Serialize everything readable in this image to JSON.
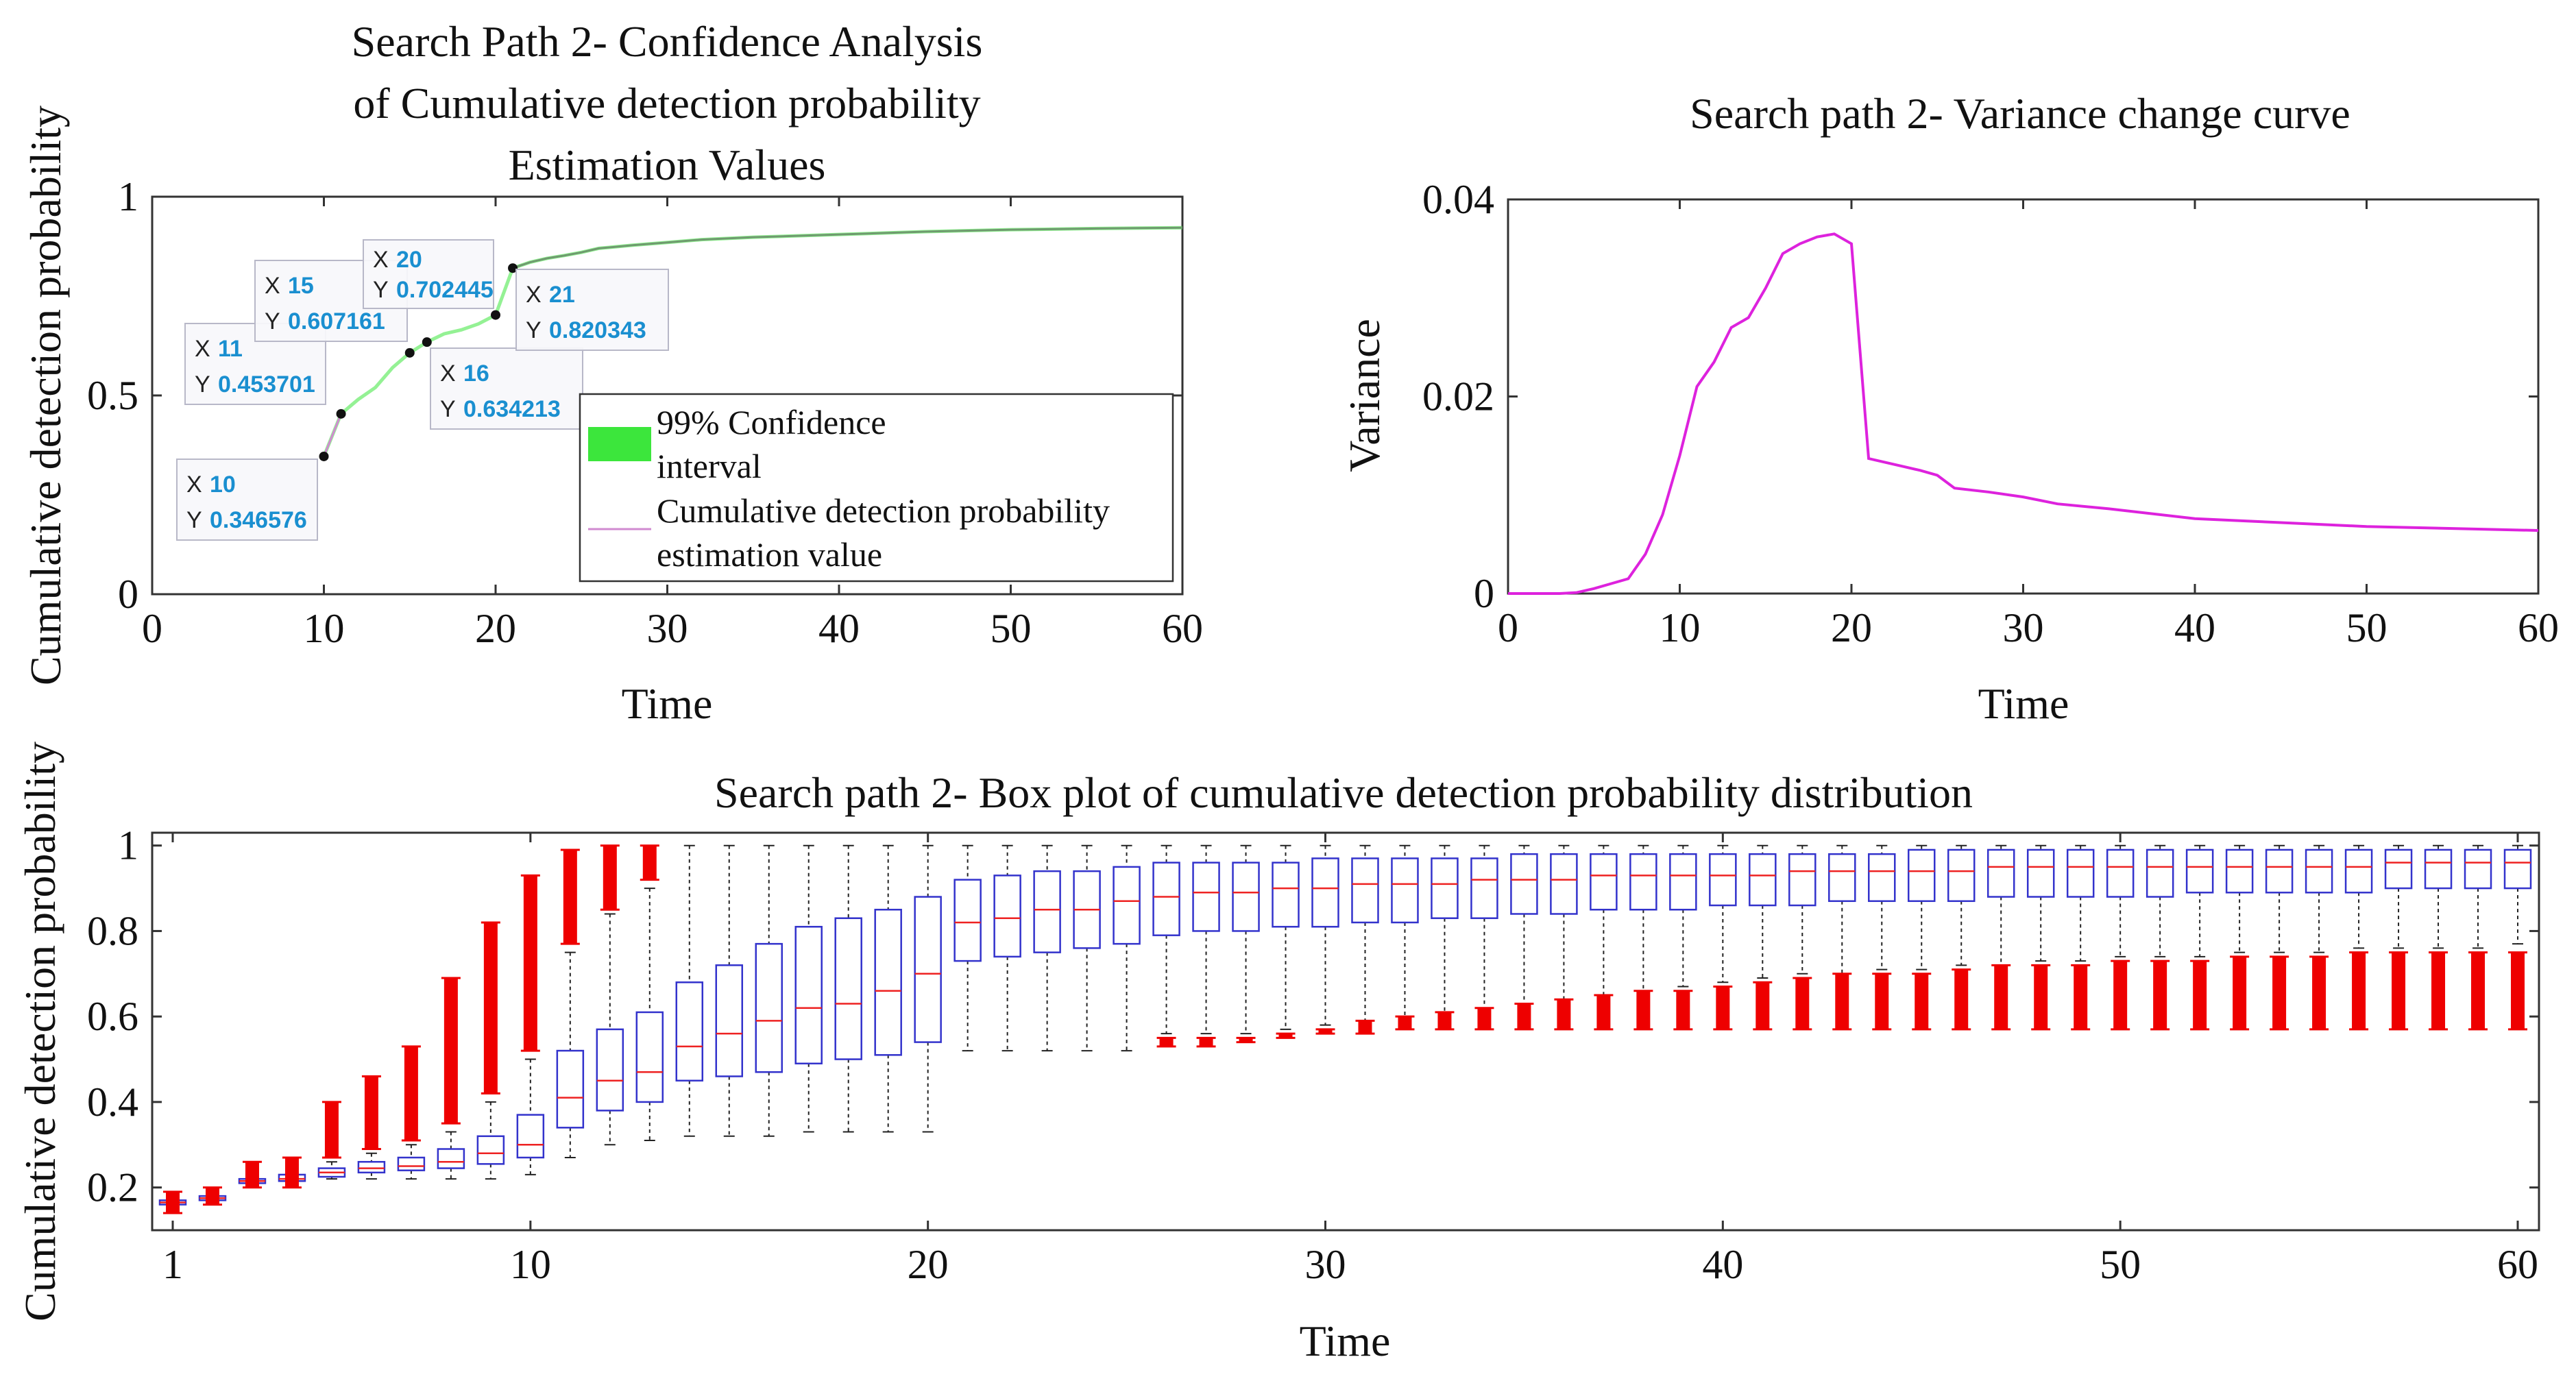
{
  "charts": {
    "confidence": {
      "title": [
        "Search Path 2- Confidence Analysis",
        "of Cumulative detection probability",
        "Estimation Values"
      ],
      "xlabel": "Time",
      "ylabel": "Cumulative detection probability",
      "legend": [
        "99% Confidence",
        "interval",
        "Cumulative detection probability",
        "estimation value"
      ],
      "xticks": [
        "0",
        "10",
        "20",
        "30",
        "40",
        "50",
        "60"
      ],
      "yticks": [
        "0",
        "0.5",
        "1"
      ]
    },
    "variance": {
      "title": "Search path 2- Variance change curve",
      "xlabel": "Time",
      "ylabel": "Variance",
      "xticks": [
        "0",
        "10",
        "20",
        "30",
        "40",
        "50",
        "60"
      ],
      "yticks": [
        "0",
        "0.02",
        "0.04"
      ]
    },
    "box": {
      "title": "Search path 2- Box plot of cumulative detection probability distribution",
      "xlabel": "Time",
      "ylabel": "Cumulative detection probability",
      "xticks": [
        "1",
        "10",
        "20",
        "30",
        "40",
        "50",
        "60"
      ],
      "yticks": [
        "0.2",
        "0.4",
        "0.6",
        "0.8",
        "1"
      ]
    }
  },
  "chart_data": [
    {
      "type": "line",
      "title": "Search Path 2- Confidence Analysis of Cumulative detection probability Estimation Values",
      "xlabel": "Time",
      "ylabel": "Cumulative detection probability",
      "xlim": [
        0,
        60
      ],
      "ylim": [
        0,
        1
      ],
      "legend_position": "right-center",
      "series": [
        {
          "name": "Cumulative detection probability estimation value",
          "color": "#d08ad0",
          "x": [
            10,
            11,
            12,
            13,
            14,
            15,
            16,
            17,
            18,
            19,
            20,
            21,
            22,
            23,
            24,
            25,
            26,
            28,
            30,
            32,
            35,
            40,
            45,
            50,
            55,
            60
          ],
          "y": [
            0.3466,
            0.4537,
            0.49,
            0.52,
            0.57,
            0.6072,
            0.6342,
            0.655,
            0.665,
            0.68,
            0.7024,
            0.8203,
            0.835,
            0.845,
            0.852,
            0.86,
            0.87,
            0.878,
            0.885,
            0.892,
            0.898,
            0.905,
            0.912,
            0.917,
            0.92,
            0.922
          ]
        }
      ],
      "band": {
        "name": "99% Confidence interval",
        "color": "#3ce63c"
      },
      "datatips": [
        {
          "x": "10",
          "y": "0.346576"
        },
        {
          "x": "11",
          "y": "0.453701"
        },
        {
          "x": "15",
          "y": "0.607161"
        },
        {
          "x": "16",
          "y": "0.634213"
        },
        {
          "x": "20",
          "y": "0.702445"
        },
        {
          "x": "21",
          "y": "0.820343"
        }
      ]
    },
    {
      "type": "line",
      "title": "Search path 2- Variance change curve",
      "xlabel": "Time",
      "ylabel": "Variance",
      "xlim": [
        0,
        60
      ],
      "ylim": [
        0,
        0.04
      ],
      "series": [
        {
          "color": "#dd22dd",
          "x": [
            0,
            1,
            2,
            3,
            4,
            5,
            6,
            7,
            8,
            9,
            10,
            11,
            12,
            13,
            14,
            15,
            16,
            17,
            18,
            19,
            20,
            21,
            22,
            23,
            24,
            25,
            26,
            28,
            30,
            32,
            35,
            40,
            45,
            50,
            55,
            60
          ],
          "y": [
            0,
            0,
            0,
            0,
            0.0001,
            0.0005,
            0.001,
            0.0015,
            0.004,
            0.008,
            0.014,
            0.021,
            0.0235,
            0.027,
            0.028,
            0.031,
            0.0345,
            0.0355,
            0.0362,
            0.0365,
            0.0355,
            0.0137,
            0.0133,
            0.0129,
            0.0125,
            0.012,
            0.0107,
            0.0103,
            0.0098,
            0.0091,
            0.0086,
            0.0076,
            0.0072,
            0.0068,
            0.0066,
            0.0064
          ]
        }
      ]
    },
    {
      "type": "box",
      "title": "Search path 2- Box plot of cumulative detection probability distribution",
      "xlabel": "Time",
      "ylabel": "Cumulative detection probability",
      "xlim": [
        1,
        60
      ],
      "ylim": [
        0.1,
        1.03
      ],
      "box_color": "#3333cc",
      "median_color": "#ee2222",
      "outlier_color": "#ee0000",
      "boxes": [
        {
          "t": 1,
          "lo": 0.16,
          "q1": 0.16,
          "med": 0.165,
          "q3": 0.17,
          "hi": 0.18,
          "olo": 0.14,
          "ohi": 0.19
        },
        {
          "t": 2,
          "lo": 0.17,
          "q1": 0.17,
          "med": 0.175,
          "q3": 0.18,
          "hi": 0.19,
          "olo": 0.16,
          "ohi": 0.2
        },
        {
          "t": 3,
          "lo": 0.2,
          "q1": 0.21,
          "med": 0.215,
          "q3": 0.22,
          "hi": 0.23,
          "olo": 0.2,
          "ohi": 0.26
        },
        {
          "t": 4,
          "lo": 0.21,
          "q1": 0.215,
          "med": 0.22,
          "q3": 0.23,
          "hi": 0.24,
          "olo": 0.2,
          "ohi": 0.27
        },
        {
          "t": 5,
          "lo": 0.22,
          "q1": 0.225,
          "med": 0.235,
          "q3": 0.245,
          "hi": 0.26,
          "olo": 0.27,
          "ohi": 0.4
        },
        {
          "t": 6,
          "lo": 0.22,
          "q1": 0.235,
          "med": 0.245,
          "q3": 0.26,
          "hi": 0.28,
          "olo": 0.29,
          "ohi": 0.46
        },
        {
          "t": 7,
          "lo": 0.22,
          "q1": 0.24,
          "med": 0.25,
          "q3": 0.27,
          "hi": 0.3,
          "olo": 0.31,
          "ohi": 0.53
        },
        {
          "t": 8,
          "lo": 0.22,
          "q1": 0.245,
          "med": 0.26,
          "q3": 0.29,
          "hi": 0.33,
          "olo": 0.35,
          "ohi": 0.69
        },
        {
          "t": 9,
          "lo": 0.22,
          "q1": 0.255,
          "med": 0.28,
          "q3": 0.32,
          "hi": 0.4,
          "olo": 0.42,
          "ohi": 0.82
        },
        {
          "t": 10,
          "lo": 0.23,
          "q1": 0.27,
          "med": 0.3,
          "q3": 0.37,
          "hi": 0.5,
          "olo": 0.52,
          "ohi": 0.93
        },
        {
          "t": 11,
          "lo": 0.27,
          "q1": 0.34,
          "med": 0.41,
          "q3": 0.52,
          "hi": 0.75,
          "olo": 0.77,
          "ohi": 0.99
        },
        {
          "t": 12,
          "lo": 0.3,
          "q1": 0.38,
          "med": 0.45,
          "q3": 0.57,
          "hi": 0.84,
          "olo": 0.85,
          "ohi": 1.0
        },
        {
          "t": 13,
          "lo": 0.31,
          "q1": 0.4,
          "med": 0.47,
          "q3": 0.61,
          "hi": 0.9,
          "olo": 0.92,
          "ohi": 1.0
        },
        {
          "t": 14,
          "lo": 0.32,
          "q1": 0.45,
          "med": 0.53,
          "q3": 0.68,
          "hi": 1.0
        },
        {
          "t": 15,
          "lo": 0.32,
          "q1": 0.46,
          "med": 0.56,
          "q3": 0.72,
          "hi": 1.0
        },
        {
          "t": 16,
          "lo": 0.32,
          "q1": 0.47,
          "med": 0.59,
          "q3": 0.77,
          "hi": 1.0
        },
        {
          "t": 17,
          "lo": 0.33,
          "q1": 0.49,
          "med": 0.62,
          "q3": 0.81,
          "hi": 1.0
        },
        {
          "t": 18,
          "lo": 0.33,
          "q1": 0.5,
          "med": 0.63,
          "q3": 0.83,
          "hi": 1.0
        },
        {
          "t": 19,
          "lo": 0.33,
          "q1": 0.51,
          "med": 0.66,
          "q3": 0.85,
          "hi": 1.0
        },
        {
          "t": 20,
          "lo": 0.33,
          "q1": 0.54,
          "med": 0.7,
          "q3": 0.88,
          "hi": 1.0
        },
        {
          "t": 21,
          "lo": 0.52,
          "q1": 0.73,
          "med": 0.82,
          "q3": 0.92,
          "hi": 1.0
        },
        {
          "t": 22,
          "lo": 0.52,
          "q1": 0.74,
          "med": 0.83,
          "q3": 0.93,
          "hi": 1.0
        },
        {
          "t": 23,
          "lo": 0.52,
          "q1": 0.75,
          "med": 0.85,
          "q3": 0.94,
          "hi": 1.0
        },
        {
          "t": 24,
          "lo": 0.52,
          "q1": 0.76,
          "med": 0.85,
          "q3": 0.94,
          "hi": 1.0
        },
        {
          "t": 25,
          "lo": 0.52,
          "q1": 0.77,
          "med": 0.87,
          "q3": 0.95,
          "hi": 1.0
        },
        {
          "t": 26,
          "lo": 0.56,
          "q1": 0.79,
          "med": 0.88,
          "q3": 0.96,
          "hi": 1.0,
          "olo": 0.53,
          "ohi": 0.55
        },
        {
          "t": 27,
          "lo": 0.56,
          "q1": 0.8,
          "med": 0.89,
          "q3": 0.96,
          "hi": 1.0,
          "olo": 0.53,
          "ohi": 0.55
        },
        {
          "t": 28,
          "lo": 0.56,
          "q1": 0.8,
          "med": 0.89,
          "q3": 0.96,
          "hi": 1.0,
          "olo": 0.54,
          "ohi": 0.55
        },
        {
          "t": 29,
          "lo": 0.57,
          "q1": 0.81,
          "med": 0.9,
          "q3": 0.96,
          "hi": 1.0,
          "olo": 0.55,
          "ohi": 0.56
        },
        {
          "t": 30,
          "lo": 0.58,
          "q1": 0.81,
          "med": 0.9,
          "q3": 0.97,
          "hi": 1.0,
          "olo": 0.56,
          "ohi": 0.57
        },
        {
          "t": 31,
          "lo": 0.59,
          "q1": 0.82,
          "med": 0.91,
          "q3": 0.97,
          "hi": 1.0,
          "olo": 0.56,
          "ohi": 0.59
        },
        {
          "t": 32,
          "lo": 0.6,
          "q1": 0.82,
          "med": 0.91,
          "q3": 0.97,
          "hi": 1.0,
          "olo": 0.57,
          "ohi": 0.6
        },
        {
          "t": 33,
          "lo": 0.61,
          "q1": 0.83,
          "med": 0.91,
          "q3": 0.97,
          "hi": 1.0,
          "olo": 0.57,
          "ohi": 0.61
        },
        {
          "t": 34,
          "lo": 0.62,
          "q1": 0.83,
          "med": 0.92,
          "q3": 0.97,
          "hi": 1.0,
          "olo": 0.57,
          "ohi": 0.62
        },
        {
          "t": 35,
          "lo": 0.63,
          "q1": 0.84,
          "med": 0.92,
          "q3": 0.98,
          "hi": 1.0,
          "olo": 0.57,
          "ohi": 0.63
        },
        {
          "t": 36,
          "lo": 0.64,
          "q1": 0.84,
          "med": 0.92,
          "q3": 0.98,
          "hi": 1.0,
          "olo": 0.57,
          "ohi": 0.64
        },
        {
          "t": 37,
          "lo": 0.65,
          "q1": 0.85,
          "med": 0.93,
          "q3": 0.98,
          "hi": 1.0,
          "olo": 0.57,
          "ohi": 0.65
        },
        {
          "t": 38,
          "lo": 0.66,
          "q1": 0.85,
          "med": 0.93,
          "q3": 0.98,
          "hi": 1.0,
          "olo": 0.57,
          "ohi": 0.66
        },
        {
          "t": 39,
          "lo": 0.67,
          "q1": 0.85,
          "med": 0.93,
          "q3": 0.98,
          "hi": 1.0,
          "olo": 0.57,
          "ohi": 0.66
        },
        {
          "t": 40,
          "lo": 0.68,
          "q1": 0.86,
          "med": 0.93,
          "q3": 0.98,
          "hi": 1.0,
          "olo": 0.57,
          "ohi": 0.67
        },
        {
          "t": 41,
          "lo": 0.69,
          "q1": 0.86,
          "med": 0.93,
          "q3": 0.98,
          "hi": 1.0,
          "olo": 0.57,
          "ohi": 0.68
        },
        {
          "t": 42,
          "lo": 0.7,
          "q1": 0.86,
          "med": 0.94,
          "q3": 0.98,
          "hi": 1.0,
          "olo": 0.57,
          "ohi": 0.69
        },
        {
          "t": 43,
          "lo": 0.7,
          "q1": 0.87,
          "med": 0.94,
          "q3": 0.98,
          "hi": 1.0,
          "olo": 0.57,
          "ohi": 0.7
        },
        {
          "t": 44,
          "lo": 0.71,
          "q1": 0.87,
          "med": 0.94,
          "q3": 0.98,
          "hi": 1.0,
          "olo": 0.57,
          "ohi": 0.7
        },
        {
          "t": 45,
          "lo": 0.71,
          "q1": 0.87,
          "med": 0.94,
          "q3": 0.99,
          "hi": 1.0,
          "olo": 0.57,
          "ohi": 0.7
        },
        {
          "t": 46,
          "lo": 0.72,
          "q1": 0.87,
          "med": 0.94,
          "q3": 0.99,
          "hi": 1.0,
          "olo": 0.57,
          "ohi": 0.71
        },
        {
          "t": 47,
          "lo": 0.72,
          "q1": 0.88,
          "med": 0.95,
          "q3": 0.99,
          "hi": 1.0,
          "olo": 0.57,
          "ohi": 0.72
        },
        {
          "t": 48,
          "lo": 0.73,
          "q1": 0.88,
          "med": 0.95,
          "q3": 0.99,
          "hi": 1.0,
          "olo": 0.57,
          "ohi": 0.72
        },
        {
          "t": 49,
          "lo": 0.73,
          "q1": 0.88,
          "med": 0.95,
          "q3": 0.99,
          "hi": 1.0,
          "olo": 0.57,
          "ohi": 0.72
        },
        {
          "t": 50,
          "lo": 0.74,
          "q1": 0.88,
          "med": 0.95,
          "q3": 0.99,
          "hi": 1.0,
          "olo": 0.57,
          "ohi": 0.73
        },
        {
          "t": 51,
          "lo": 0.74,
          "q1": 0.88,
          "med": 0.95,
          "q3": 0.99,
          "hi": 1.0,
          "olo": 0.57,
          "ohi": 0.73
        },
        {
          "t": 52,
          "lo": 0.74,
          "q1": 0.89,
          "med": 0.95,
          "q3": 0.99,
          "hi": 1.0,
          "olo": 0.57,
          "ohi": 0.73
        },
        {
          "t": 53,
          "lo": 0.75,
          "q1": 0.89,
          "med": 0.95,
          "q3": 0.99,
          "hi": 1.0,
          "olo": 0.57,
          "ohi": 0.74
        },
        {
          "t": 54,
          "lo": 0.75,
          "q1": 0.89,
          "med": 0.95,
          "q3": 0.99,
          "hi": 1.0,
          "olo": 0.57,
          "ohi": 0.74
        },
        {
          "t": 55,
          "lo": 0.75,
          "q1": 0.89,
          "med": 0.95,
          "q3": 0.99,
          "hi": 1.0,
          "olo": 0.57,
          "ohi": 0.74
        },
        {
          "t": 56,
          "lo": 0.76,
          "q1": 0.89,
          "med": 0.95,
          "q3": 0.99,
          "hi": 1.0,
          "olo": 0.57,
          "ohi": 0.75
        },
        {
          "t": 57,
          "lo": 0.76,
          "q1": 0.9,
          "med": 0.96,
          "q3": 0.99,
          "hi": 1.0,
          "olo": 0.57,
          "ohi": 0.75
        },
        {
          "t": 58,
          "lo": 0.76,
          "q1": 0.9,
          "med": 0.96,
          "q3": 0.99,
          "hi": 1.0,
          "olo": 0.57,
          "ohi": 0.75
        },
        {
          "t": 59,
          "lo": 0.76,
          "q1": 0.9,
          "med": 0.96,
          "q3": 0.99,
          "hi": 1.0,
          "olo": 0.57,
          "ohi": 0.75
        },
        {
          "t": 60,
          "lo": 0.77,
          "q1": 0.9,
          "med": 0.96,
          "q3": 0.99,
          "hi": 1.0,
          "olo": 0.57,
          "ohi": 0.75
        }
      ]
    }
  ]
}
